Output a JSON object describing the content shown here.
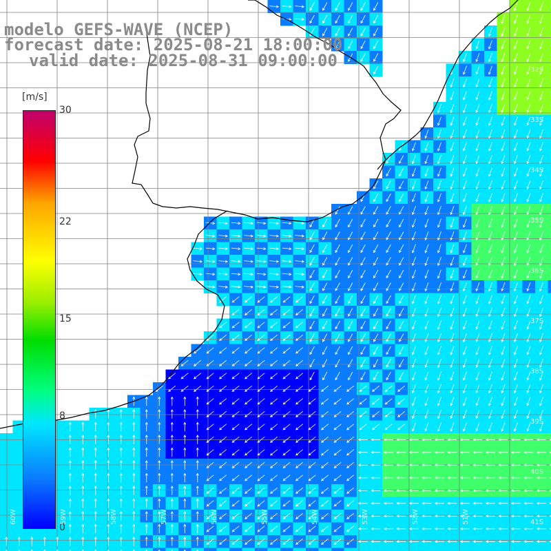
{
  "title": {
    "line1": "modelo GEFS-WAVE (NCEP)",
    "line2": "forecast date: 2025-08-21 18:00:00",
    "line3": "valid date: 2025-08-31 09:00:00"
  },
  "colorbar": {
    "unit": "[m/s]",
    "ticks": [
      "30",
      "22",
      "15",
      "8",
      "0"
    ],
    "tick_values": [
      30,
      22,
      15,
      8,
      0
    ],
    "range": [
      0,
      30
    ]
  },
  "map": {
    "lon_range": [
      -61,
      -50
    ],
    "lat_range": [
      -41,
      -31
    ],
    "lat_labels": [
      "32S",
      "33S",
      "34S",
      "35S",
      "36S",
      "37S",
      "38S",
      "39S",
      "40S",
      "41S"
    ],
    "lon_labels": [
      "60W",
      "59W",
      "58W",
      "57W",
      "56W",
      "55W",
      "54W",
      "53W",
      "52W",
      "51W"
    ],
    "colors": {
      "land": "#ffffff",
      "coast": "#000000",
      "grid": "#7f7f7f",
      "arrow": "#ffffff",
      "calm": "#0000ff",
      "light": "#0a7cff",
      "moderate": "#00e6ff",
      "fresh": "#3fff6a",
      "strong": "#8cff20"
    }
  }
}
